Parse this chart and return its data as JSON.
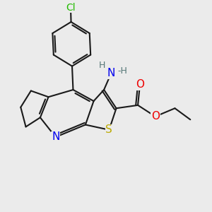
{
  "bg_color": "#ebebeb",
  "atom_colors": {
    "C": "#1a1a1a",
    "N": "#0000ee",
    "S": "#bbaa00",
    "O": "#ee0000",
    "Cl": "#22bb00",
    "H": "#557777"
  },
  "bond_color": "#1a1a1a",
  "bond_width": 1.5,
  "font_size_atom": 10,
  "font_size_small": 8
}
